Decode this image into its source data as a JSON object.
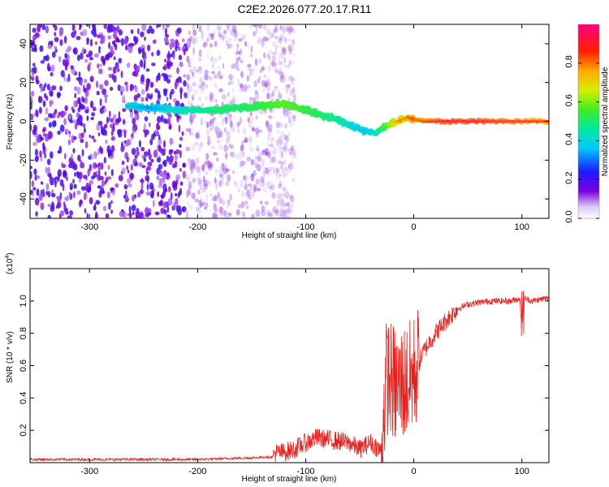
{
  "title": "C2E2.2026.077.20.17.R11",
  "colors": {
    "snr_line": "#e8201c",
    "spectrum_purple": "#6a00e0",
    "axis": "#000000"
  },
  "chart_data": [
    {
      "type": "heatmap",
      "title": "",
      "xlabel": "Height of straight line (km)",
      "ylabel": "Frequency (Hz)",
      "xlim": [
        -355,
        125
      ],
      "ylim": [
        -50,
        50
      ],
      "xticks": [
        -300,
        -200,
        -100,
        0,
        100
      ],
      "yticks": [
        -40,
        -20,
        0,
        20,
        40
      ],
      "colorbar": {
        "label": "Normalized spectral amplitude",
        "range": [
          0,
          1
        ],
        "ticks": [
          "0.0",
          "0.2",
          "0.4",
          "0.6",
          "0.8"
        ],
        "colormap": "rainbow"
      },
      "ridge": {
        "x": [
          -265,
          -245,
          -215,
          -200,
          -180,
          -160,
          -140,
          -120,
          -100,
          -85,
          -70,
          -55,
          -45,
          -35,
          -25,
          -15,
          -5,
          0,
          10,
          30,
          60,
          90,
          125
        ],
        "y": [
          8,
          7,
          6,
          6,
          6,
          7,
          8,
          9,
          6,
          3,
          1,
          -3,
          -5,
          -6,
          -2,
          0,
          2,
          1,
          0,
          0,
          0,
          0,
          0
        ],
        "amplitude": [
          0.35,
          0.3,
          0.4,
          0.45,
          0.5,
          0.5,
          0.55,
          0.6,
          0.55,
          0.5,
          0.45,
          0.35,
          0.35,
          0.4,
          0.6,
          0.8,
          0.85,
          0.9,
          0.95,
          1.0,
          1.0,
          0.95,
          0.9
        ]
      }
    },
    {
      "type": "line",
      "title": "",
      "xlabel": "Height of straight line (km)",
      "ylabel": "SNR (10 * v/v)",
      "scale_label_base": "(x10",
      "scale_label_exp": "4",
      "scale_label_end": ")",
      "xlim": [
        -355,
        125
      ],
      "ylim": [
        0,
        1.2
      ],
      "xticks": [
        -300,
        -200,
        -100,
        0,
        100
      ],
      "yticks": [
        "0.2",
        "0.4",
        "0.6",
        "0.8",
        "1.0"
      ],
      "series": [
        {
          "x": [
            -355,
            -300,
            -250,
            -200,
            -150,
            -120,
            -110,
            -100,
            -90,
            -80,
            -70,
            -60,
            -50,
            -40,
            -30,
            -28,
            -25,
            -20,
            -15,
            -10,
            -5,
            0,
            10,
            20,
            30,
            40,
            50,
            70,
            90,
            100,
            110,
            125
          ],
          "y": [
            0.02,
            0.02,
            0.02,
            0.02,
            0.03,
            0.04,
            0.06,
            0.1,
            0.13,
            0.12,
            0.11,
            0.1,
            0.06,
            0.1,
            0.05,
            0.3,
            0.55,
            0.5,
            0.45,
            0.5,
            0.5,
            0.55,
            0.7,
            0.8,
            0.88,
            0.95,
            0.98,
            1.0,
            1.0,
            1.02,
            1.0,
            1.02
          ]
        }
      ]
    }
  ]
}
